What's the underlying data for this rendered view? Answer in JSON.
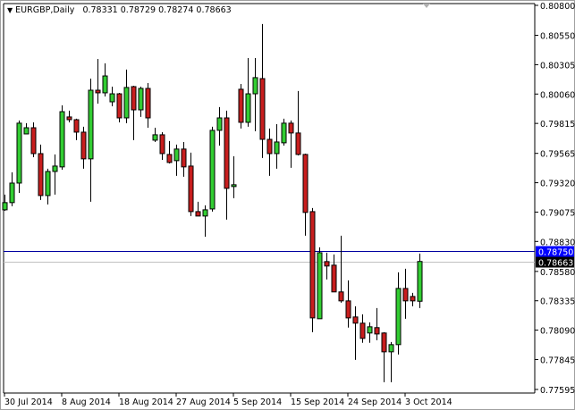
{
  "chart_data": {
    "type": "candlestick",
    "symbol": "EURGBP",
    "timeframe": "Daily",
    "header_ohlc": [
      "0.78331",
      "0.78729",
      "0.78274",
      "0.78663"
    ],
    "ylim": [
      0.77595,
      0.808
    ],
    "y_ticks": [
      "0.80800",
      "0.80550",
      "0.80305",
      "0.80060",
      "0.79815",
      "0.79565",
      "0.79320",
      "0.79075",
      "0.78830",
      "0.78580",
      "0.78335",
      "0.78090",
      "0.77845",
      "0.77595"
    ],
    "x_ticks": [
      {
        "index": 0,
        "label": "30 Jul 2014"
      },
      {
        "index": 8,
        "label": "8 Aug 2014"
      },
      {
        "index": 16,
        "label": "18 Aug 2014"
      },
      {
        "index": 24,
        "label": "27 Aug 2014"
      },
      {
        "index": 32,
        "label": "5 Sep 2014"
      },
      {
        "index": 40,
        "label": "15 Sep 2014"
      },
      {
        "index": 48,
        "label": "24 Sep 2014"
      },
      {
        "index": 56,
        "label": "3 Oct 2014"
      }
    ],
    "candles_ohlc": [
      [
        0.79094,
        0.79221,
        0.79086,
        0.79154
      ],
      [
        0.79154,
        0.79407,
        0.79124,
        0.79317
      ],
      [
        0.79317,
        0.79839,
        0.79235,
        0.79817
      ],
      [
        0.79727,
        0.79817,
        0.79727,
        0.79779
      ],
      [
        0.79779,
        0.79824,
        0.79533,
        0.79563
      ],
      [
        0.79563,
        0.79638,
        0.79176,
        0.79213
      ],
      [
        0.79213,
        0.79437,
        0.79139,
        0.79414
      ],
      [
        0.79414,
        0.79556,
        0.79221,
        0.79459
      ],
      [
        0.79452,
        0.79966,
        0.79429,
        0.79913
      ],
      [
        0.79869,
        0.79921,
        0.79824,
        0.79846
      ],
      [
        0.79846,
        0.79854,
        0.79675,
        0.79742
      ],
      [
        0.79742,
        0.79787,
        0.79437,
        0.79519
      ],
      [
        0.79519,
        0.80189,
        0.79161,
        0.80092
      ],
      [
        0.80092,
        0.80353,
        0.7998,
        0.8007
      ],
      [
        0.8007,
        0.80316,
        0.8004,
        0.80211
      ],
      [
        0.79995,
        0.80122,
        0.79958,
        0.80062
      ],
      [
        0.80062,
        0.8007,
        0.79824,
        0.79861
      ],
      [
        0.79861,
        0.80264,
        0.79817,
        0.80115
      ],
      [
        0.80122,
        0.80129,
        0.79675,
        0.79928
      ],
      [
        0.79928,
        0.80122,
        0.79869,
        0.80107
      ],
      [
        0.80107,
        0.80152,
        0.79779,
        0.79861
      ],
      [
        0.79675,
        0.79779,
        0.7966,
        0.7972
      ],
      [
        0.7972,
        0.79742,
        0.79511,
        0.79563
      ],
      [
        0.79556,
        0.79668,
        0.79481,
        0.79489
      ],
      [
        0.79504,
        0.79638,
        0.79377,
        0.79601
      ],
      [
        0.79601,
        0.7966,
        0.7937,
        0.79452
      ],
      [
        0.79459,
        0.79571,
        0.79042,
        0.79079
      ],
      [
        0.79079,
        0.79161,
        0.79042,
        0.79042
      ],
      [
        0.79042,
        0.79131,
        0.7887,
        0.79094
      ],
      [
        0.79101,
        0.79787,
        0.79079,
        0.79757
      ],
      [
        0.79757,
        0.79951,
        0.7963,
        0.79861
      ],
      [
        0.79861,
        0.79921,
        0.79012,
        0.79273
      ],
      [
        0.79288,
        0.79541,
        0.79191,
        0.79303
      ],
      [
        0.801,
        0.80144,
        0.79772,
        0.79824
      ],
      [
        0.79824,
        0.8036,
        0.79787,
        0.80062
      ],
      [
        0.80062,
        0.8036,
        0.7975,
        0.80197
      ],
      [
        0.80189,
        0.80644,
        0.79526,
        0.79682
      ],
      [
        0.79682,
        0.79772,
        0.79377,
        0.79563
      ],
      [
        0.79563,
        0.79809,
        0.79437,
        0.7966
      ],
      [
        0.79653,
        0.79854,
        0.7963,
        0.79817
      ],
      [
        0.79817,
        0.79839,
        0.79444,
        0.79735
      ],
      [
        0.79735,
        0.80085,
        0.79548,
        0.79556
      ],
      [
        0.79556,
        0.79563,
        0.78878,
        0.79072
      ],
      [
        0.79079,
        0.79109,
        0.78073,
        0.78192
      ],
      [
        0.78185,
        0.78781,
        0.78185,
        0.78736
      ],
      [
        0.78662,
        0.78736,
        0.78513,
        0.78625
      ],
      [
        0.78632,
        0.78721,
        0.78409,
        0.78409
      ],
      [
        0.78409,
        0.78878,
        0.78319,
        0.78334
      ],
      [
        0.78334,
        0.78505,
        0.78111,
        0.78192
      ],
      [
        0.782,
        0.78289,
        0.77842,
        0.78148
      ],
      [
        0.78148,
        0.78222,
        0.77984,
        0.78021
      ],
      [
        0.78066,
        0.78155,
        0.77984,
        0.78118
      ],
      [
        0.78111,
        0.78274,
        0.78006,
        0.78058
      ],
      [
        0.78066,
        0.78073,
        0.77656,
        0.77909
      ],
      [
        0.77909,
        0.77991,
        0.77656,
        0.77969
      ],
      [
        0.77969,
        0.78572,
        0.77887,
        0.78438
      ],
      [
        0.78438,
        0.78602,
        0.78185,
        0.78334
      ],
      [
        0.78371,
        0.78401,
        0.78289,
        0.78334
      ],
      [
        0.78331,
        0.78729,
        0.78274,
        0.78663
      ]
    ],
    "horizontal_lines": [
      {
        "value": 0.7875,
        "label": "0.78750",
        "color": "#0000A0",
        "label_bg": "#0000FF"
      },
      {
        "value": 0.78663,
        "label": "0.78663",
        "color": "#C0C0C0",
        "label_bg": "#000000"
      }
    ],
    "colors": {
      "bull": "#32CD32",
      "bear": "#C81E1E",
      "outline": "#000000"
    },
    "grid": false
  }
}
